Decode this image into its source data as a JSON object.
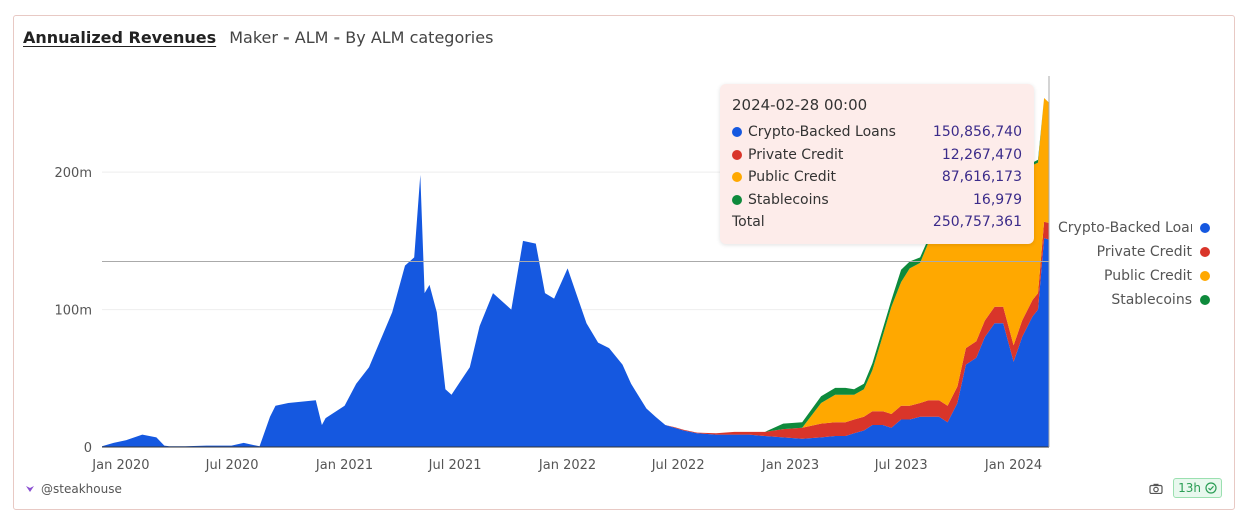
{
  "header": {
    "title": "Annualized Revenues",
    "subtitle_owner": "Maker",
    "subtitle_sep": "-",
    "subtitle_project": "ALM",
    "subtitle_view": "By ALM categories"
  },
  "footer": {
    "author": "@steakhouse",
    "freshness": "13h",
    "camera_icon": "camera-icon",
    "check_icon": "check-circle-icon"
  },
  "tooltip": {
    "date": "2024-02-28 00:00",
    "rows": [
      {
        "label": "Crypto-Backed Loans",
        "value": "150,856,740"
      },
      {
        "label": "Private Credit",
        "value": "12,267,470"
      },
      {
        "label": "Public Credit",
        "value": "87,616,173"
      },
      {
        "label": "Stablecoins",
        "value": "16,979"
      }
    ],
    "total_label": "Total",
    "total_value": "250,757,361"
  },
  "legend": [
    {
      "label": "Crypto-Backed Loans",
      "color": "#1558e0"
    },
    {
      "label": "Private Credit",
      "color": "#d9352a"
    },
    {
      "label": "Public Credit",
      "color": "#ffa800"
    },
    {
      "label": "Stablecoins",
      "color": "#0e8a3c"
    }
  ],
  "chart_data": {
    "type": "area",
    "stacked": true,
    "title": "Annualized Revenues",
    "ylim": [
      0,
      270000000
    ],
    "y_ticks": [
      0,
      100000000,
      200000000
    ],
    "y_tick_labels": [
      "0",
      "100m",
      "200m"
    ],
    "x_tick_labels": [
      "Jan 2020",
      "Jul 2020",
      "Jan 2021",
      "Jul 2021",
      "Jan 2022",
      "Jul 2022",
      "Jan 2023",
      "Jul 2023",
      "Jan 2024"
    ],
    "x_tick_dates": [
      "2020-01-01",
      "2020-07-01",
      "2021-01-01",
      "2021-07-01",
      "2022-01-01",
      "2022-07-01",
      "2023-01-01",
      "2023-07-01",
      "2024-01-01"
    ],
    "x_range": [
      "2019-12-01",
      "2024-02-28"
    ],
    "hover_date": "2024-02-28",
    "hover_y": 135000000,
    "legend_position": "right",
    "grid": true,
    "x": [
      "2019-12-01",
      "2019-12-20",
      "2020-01-10",
      "2020-02-05",
      "2020-02-28",
      "2020-03-12",
      "2020-03-20",
      "2020-04-15",
      "2020-05-20",
      "2020-06-30",
      "2020-07-20",
      "2020-08-15",
      "2020-09-01",
      "2020-09-10",
      "2020-10-01",
      "2020-11-15",
      "2020-11-25",
      "2020-12-01",
      "2021-01-01",
      "2021-01-20",
      "2021-02-10",
      "2021-03-01",
      "2021-03-20",
      "2021-04-10",
      "2021-04-25",
      "2021-05-05",
      "2021-05-12",
      "2021-05-20",
      "2021-06-01",
      "2021-06-15",
      "2021-06-25",
      "2021-07-10",
      "2021-07-25",
      "2021-08-10",
      "2021-09-01",
      "2021-10-01",
      "2021-10-20",
      "2021-11-10",
      "2021-11-25",
      "2021-12-10",
      "2022-01-01",
      "2022-01-15",
      "2022-02-01",
      "2022-02-20",
      "2022-03-10",
      "2022-04-01",
      "2022-04-15",
      "2022-05-10",
      "2022-05-25",
      "2022-06-10",
      "2022-06-25",
      "2022-07-10",
      "2022-08-01",
      "2022-09-01",
      "2022-10-01",
      "2022-10-25",
      "2022-11-20",
      "2022-12-20",
      "2023-01-20",
      "2023-02-20",
      "2023-03-15",
      "2023-04-01",
      "2023-04-15",
      "2023-05-01",
      "2023-05-15",
      "2023-06-01",
      "2023-06-15",
      "2023-07-01",
      "2023-07-15",
      "2023-08-01",
      "2023-08-15",
      "2023-09-01",
      "2023-09-15",
      "2023-10-01",
      "2023-10-15",
      "2023-11-01",
      "2023-11-15",
      "2023-12-01",
      "2023-12-15",
      "2024-01-01",
      "2024-01-15",
      "2024-02-01",
      "2024-02-10",
      "2024-02-20",
      "2024-02-28"
    ],
    "series": [
      {
        "name": "Crypto-Backed Loans",
        "values": [
          0.5,
          3,
          5,
          9,
          7,
          1,
          0.5,
          0.5,
          1,
          1,
          3,
          0.5,
          22,
          30,
          32,
          34,
          16,
          21,
          30,
          46,
          58,
          78,
          98,
          132,
          138,
          198,
          112,
          118,
          98,
          42,
          38,
          48,
          58,
          88,
          112,
          100,
          150,
          148,
          112,
          108,
          130,
          112,
          90,
          76,
          72,
          60,
          46,
          28,
          22,
          16,
          14,
          12,
          10,
          9,
          9,
          9,
          8,
          7,
          6,
          7,
          8,
          8,
          10,
          12,
          16,
          16,
          14,
          20,
          20,
          22,
          22,
          22,
          18,
          32,
          60,
          65,
          80,
          90,
          90,
          62,
          80,
          95,
          100,
          152,
          151
        ]
      },
      {
        "name": "Private Credit",
        "values": [
          0,
          0,
          0,
          0,
          0,
          0,
          0,
          0,
          0,
          0,
          0,
          0,
          0,
          0,
          0,
          0,
          0,
          0,
          0,
          0,
          0,
          0,
          0,
          0,
          0,
          0,
          0,
          0,
          0,
          0,
          0,
          0,
          0,
          0,
          0,
          0,
          0,
          0,
          0,
          0,
          0,
          0,
          0,
          0,
          0,
          0,
          0,
          0,
          0,
          0,
          0.5,
          0.5,
          0.5,
          1,
          2,
          2,
          3,
          6,
          8,
          10,
          10,
          10,
          10,
          10,
          10,
          10,
          10,
          10,
          10,
          10,
          12,
          12,
          12,
          12,
          12,
          12,
          12,
          12,
          12,
          12,
          12,
          12,
          12,
          12,
          12
        ]
      },
      {
        "name": "Public Credit",
        "values": [
          0,
          0,
          0,
          0,
          0,
          0,
          0,
          0,
          0,
          0,
          0,
          0,
          0,
          0,
          0,
          0,
          0,
          0,
          0,
          0,
          0,
          0,
          0,
          0,
          0,
          0,
          0,
          0,
          0,
          0,
          0,
          0,
          0,
          0,
          0,
          0,
          0,
          0,
          0,
          0,
          0,
          0,
          0,
          0,
          0,
          0,
          0,
          0,
          0,
          0,
          0,
          0,
          0,
          0,
          0,
          0,
          0,
          0,
          0,
          15,
          20,
          20,
          18,
          20,
          30,
          55,
          78,
          90,
          100,
          102,
          115,
          125,
          135,
          150,
          155,
          142,
          130,
          120,
          115,
          110,
          105,
          98,
          95,
          90,
          87.6
        ]
      },
      {
        "name": "Stablecoins",
        "values": [
          0,
          0,
          0,
          0,
          0,
          0,
          0,
          0,
          0,
          0,
          0,
          0,
          0,
          0,
          0,
          0,
          0,
          0,
          0,
          0,
          0,
          0,
          0,
          0,
          0,
          0,
          0,
          0,
          0,
          0,
          0,
          0,
          0,
          0,
          0,
          0,
          0,
          0,
          0,
          0,
          0,
          0,
          0,
          0,
          0,
          0,
          0,
          0,
          0,
          0,
          0,
          0,
          0,
          0,
          0,
          0,
          0,
          4,
          4,
          5,
          5,
          5,
          4,
          4,
          5,
          5,
          5,
          9,
          5,
          4,
          3,
          2,
          2,
          2,
          2,
          2,
          2,
          2,
          2,
          2,
          2,
          2,
          2,
          0,
          0.02
        ]
      }
    ],
    "value_unit": "millions (USD)"
  }
}
